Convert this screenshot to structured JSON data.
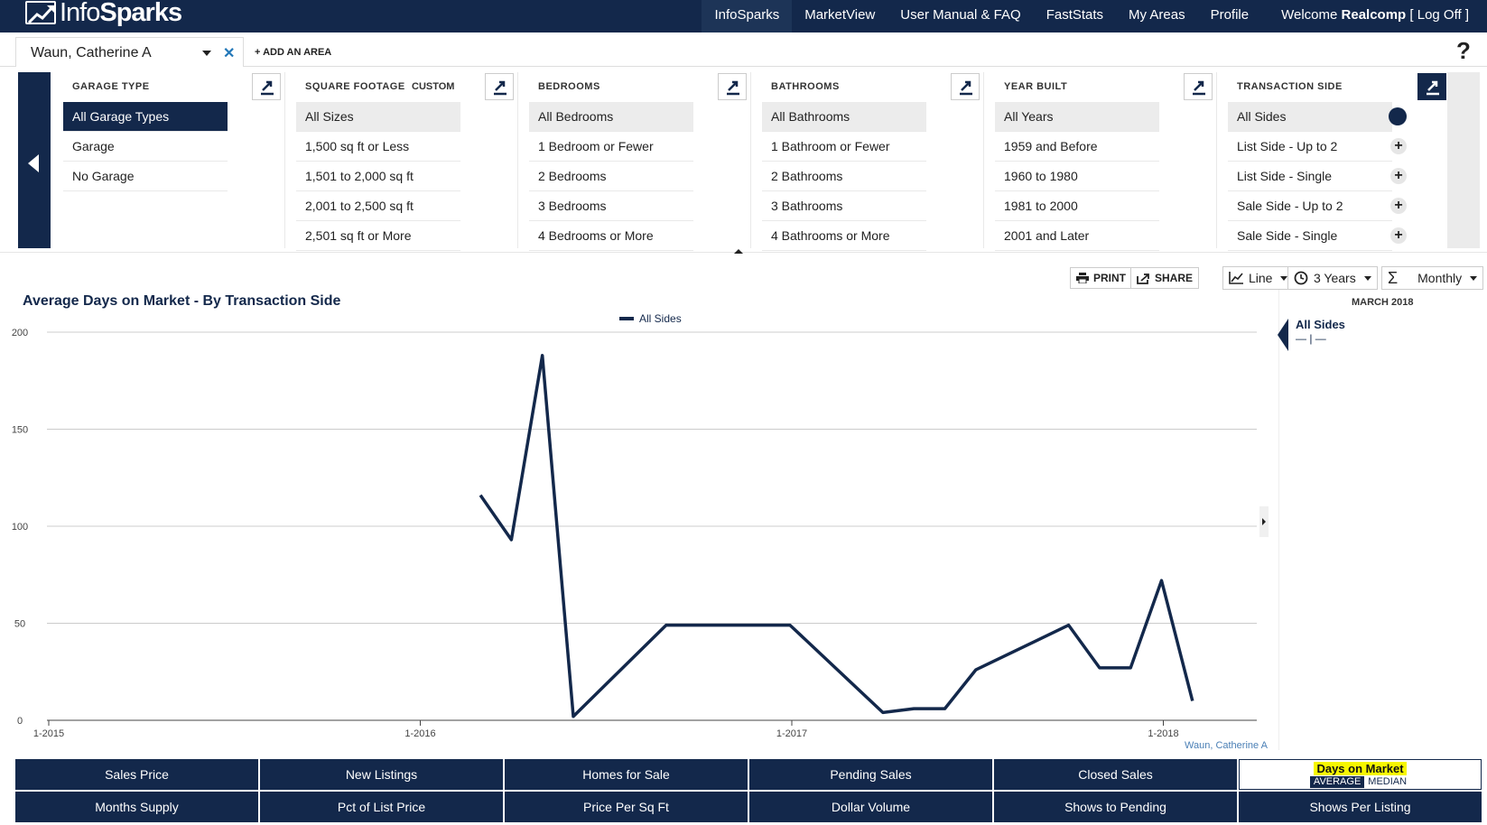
{
  "brand": {
    "prefix": "Info",
    "suffix": "Sparks"
  },
  "nav": {
    "items": [
      "InfoSparks",
      "MarketView",
      "User Manual & FAQ",
      "FastStats",
      "My Areas",
      "Profile"
    ],
    "welcome_prefix": "Welcome ",
    "user": "Realcomp",
    "logoff": " [ Log Off ]"
  },
  "area": {
    "name": "Waun, Catherine A",
    "add_label": "+ ADD AN AREA",
    "help": "?"
  },
  "filters": [
    {
      "heading": "GARAGE TYPE",
      "items": [
        "All Garage Types",
        "Garage",
        "No Garage"
      ]
    },
    {
      "heading": "SQUARE FOOTAGE",
      "custom": "CUSTOM",
      "items": [
        "All Sizes",
        "1,500 sq ft or Less",
        "1,501 to 2,000 sq ft",
        "2,001 to 2,500 sq ft",
        "2,501 sq ft or More"
      ]
    },
    {
      "heading": "BEDROOMS",
      "items": [
        "All Bedrooms",
        "1 Bedroom or Fewer",
        "2 Bedrooms",
        "3 Bedrooms",
        "4 Bedrooms or More"
      ]
    },
    {
      "heading": "BATHROOMS",
      "items": [
        "All Bathrooms",
        "1 Bathroom or Fewer",
        "2 Bathrooms",
        "3 Bathrooms",
        "4 Bathrooms or More"
      ]
    },
    {
      "heading": "YEAR BUILT",
      "items": [
        "All Years",
        "1959 and Before",
        "1960 to 1980",
        "1981 to 2000",
        "2001 and Later"
      ]
    },
    {
      "heading": "TRANSACTION SIDE",
      "items": [
        "All Sides",
        "List Side - Up to 2",
        "List Side - Single",
        "Sale Side - Up to 2",
        "Sale Side - Single"
      ]
    }
  ],
  "toolbar": {
    "print": "PRINT",
    "share": "SHARE",
    "chart_type": "Line",
    "range": "3 Years",
    "period": "Monthly"
  },
  "chart_title": "Average Days on Market - By Transaction Side",
  "legend_panel": {
    "date": "MARCH 2018",
    "series": "All Sides",
    "value": "— | —"
  },
  "source_label": "Waun, Catherine A",
  "colors": {
    "navy": "#13284b",
    "highlight": "#f6f600",
    "grid": "#cccccc"
  },
  "chart_data": {
    "type": "line",
    "title": "Average Days on Market - By Transaction Side",
    "x_ticks": [
      "1-2015",
      "1-2016",
      "1-2017",
      "1-2018"
    ],
    "y_ticks": [
      0,
      50,
      100,
      150,
      200
    ],
    "ylim": [
      0,
      200
    ],
    "x_range": [
      "2015-01",
      "2018-03"
    ],
    "grid": true,
    "legend": "top-center",
    "series": [
      {
        "name": "All Sides",
        "color": "#13284b",
        "points": [
          {
            "x": "2016-03",
            "y": 116
          },
          {
            "x": "2016-04",
            "y": 93
          },
          {
            "x": "2016-05",
            "y": 188
          },
          {
            "x": "2016-06",
            "y": 2
          },
          {
            "x": "2016-09",
            "y": 49
          },
          {
            "x": "2016-12",
            "y": 49
          },
          {
            "x": "2017-01",
            "y": 49
          },
          {
            "x": "2017-04",
            "y": 4
          },
          {
            "x": "2017-05",
            "y": 6
          },
          {
            "x": "2017-06",
            "y": 6
          },
          {
            "x": "2017-07",
            "y": 26
          },
          {
            "x": "2017-10",
            "y": 49
          },
          {
            "x": "2017-11",
            "y": 27
          },
          {
            "x": "2017-12",
            "y": 27
          },
          {
            "x": "2018-01",
            "y": 72
          },
          {
            "x": "2018-02",
            "y": 10
          }
        ]
      }
    ]
  },
  "metric_tabs": [
    "Sales Price",
    "New Listings",
    "Homes for Sale",
    "Pending Sales",
    "Closed Sales",
    "Days on Market",
    "Months Supply",
    "Pct of List Price",
    "Price Per Sq Ft",
    "Dollar Volume",
    "Shows to Pending",
    "Shows Per Listing"
  ],
  "active_tab_options": {
    "on": "AVERAGE",
    "off": "MEDIAN"
  }
}
